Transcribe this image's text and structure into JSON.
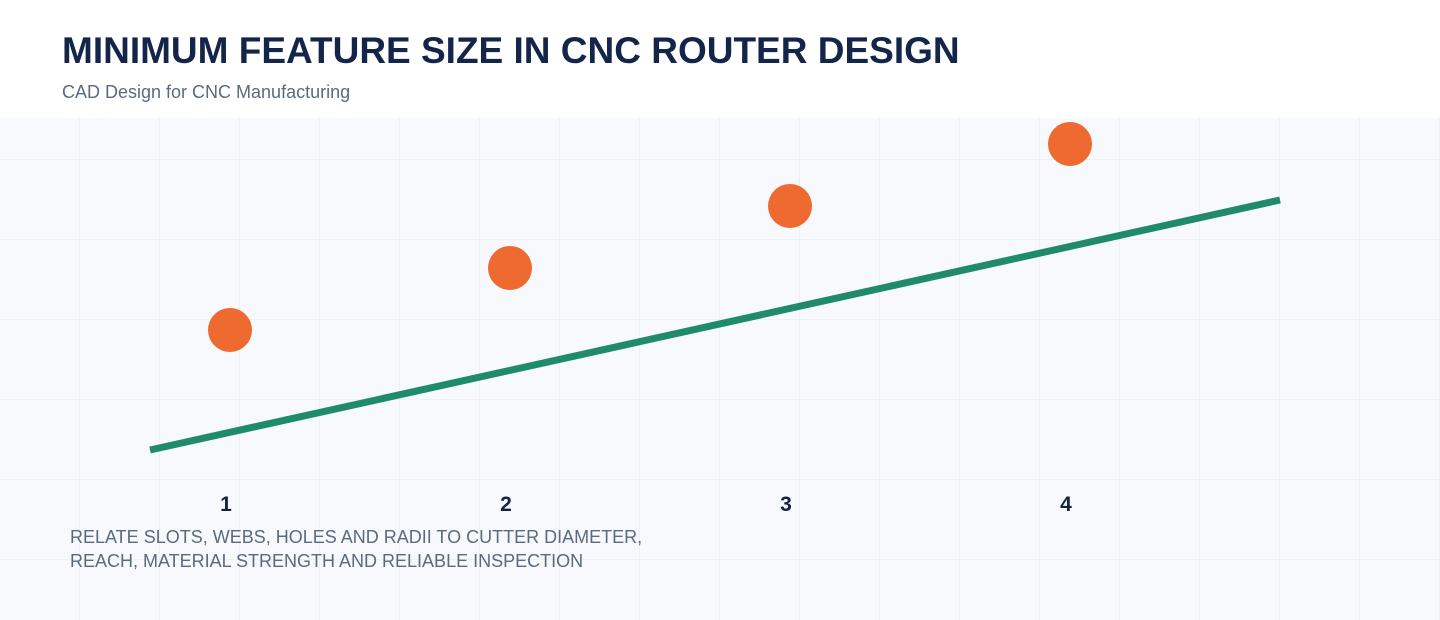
{
  "header": {
    "title": "MINIMUM FEATURE SIZE IN CNC ROUTER DESIGN",
    "subtitle": "CAD Design for CNC Manufacturing"
  },
  "steps": [
    "1",
    "2",
    "3",
    "4"
  ],
  "caption": [
    "RELATE SLOTS, WEBS, HOLES AND RADII TO CUTTER DIAMETER,",
    "REACH, MATERIAL STRENGTH AND RELIABLE INSPECTION"
  ]
}
